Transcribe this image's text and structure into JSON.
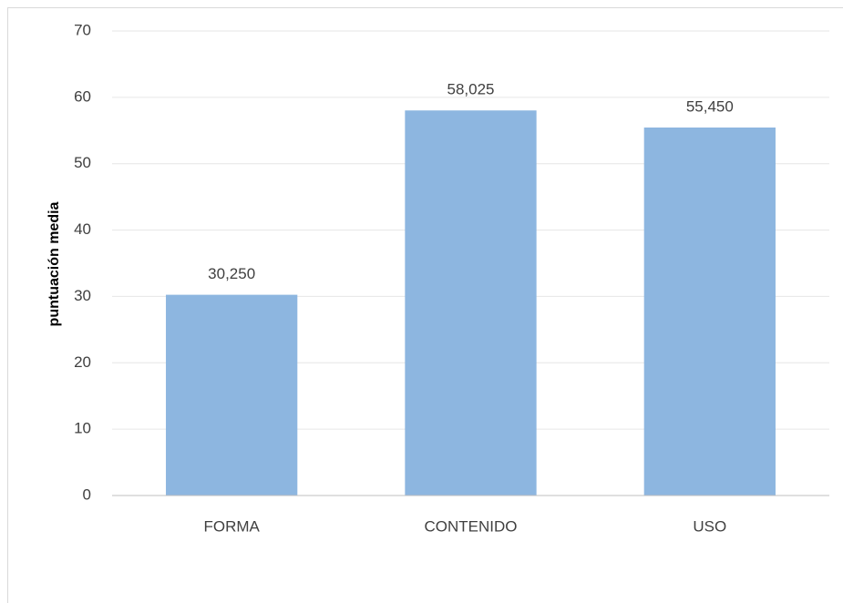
{
  "chart_data": {
    "type": "bar",
    "y_label": "puntuación media",
    "categories": [
      "FORMA",
      "CONTENIDO",
      "USO"
    ],
    "values": [
      30.25,
      58.025,
      55.45
    ],
    "value_labels": [
      "30,250",
      "58,025",
      "55,450"
    ],
    "color": "#8db6e0",
    "ylim": [
      0,
      70
    ],
    "yticks": [
      0,
      10,
      20,
      30,
      40,
      50,
      60,
      70
    ],
    "grid": true
  }
}
